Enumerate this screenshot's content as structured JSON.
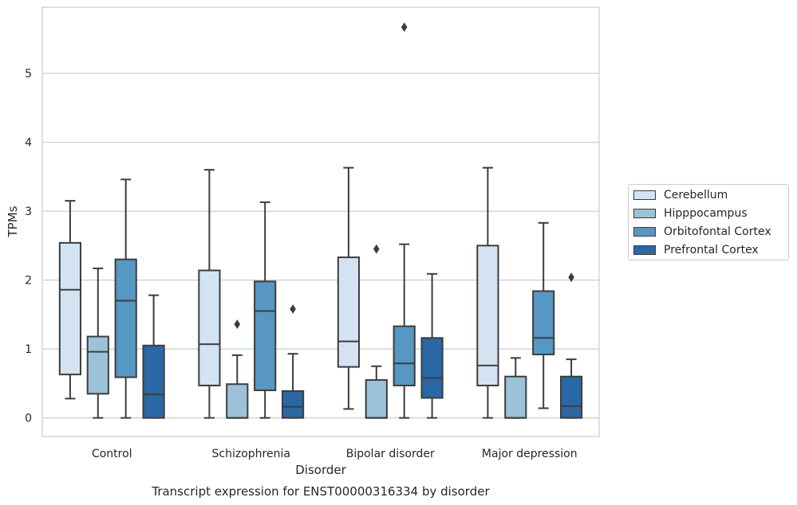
{
  "chart_data": {
    "type": "box",
    "title": "Transcript expression for ENST00000316334 by disorder",
    "xlabel": "Disorder",
    "ylabel": "TPMs",
    "ylim": [
      -0.27,
      5.96
    ],
    "yticks": [
      0,
      1,
      2,
      3,
      4,
      5
    ],
    "grid": "horizontal",
    "legend_position": "right",
    "categories": [
      "Control",
      "Schizophrenia",
      "Bipolar disorder",
      "Major depression"
    ],
    "series": [
      {
        "name": "Cerebellum",
        "color": "#d3e3f2",
        "boxes": [
          {
            "whislo": 0.28,
            "q1": 0.63,
            "med": 1.86,
            "q3": 2.54,
            "whishi": 3.15,
            "fliers": []
          },
          {
            "whislo": 0.0,
            "q1": 0.47,
            "med": 1.07,
            "q3": 2.14,
            "whishi": 3.6,
            "fliers": []
          },
          {
            "whislo": 0.13,
            "q1": 0.74,
            "med": 1.11,
            "q3": 2.33,
            "whishi": 3.63,
            "fliers": []
          },
          {
            "whislo": 0.0,
            "q1": 0.47,
            "med": 0.76,
            "q3": 2.5,
            "whishi": 3.63,
            "fliers": []
          }
        ]
      },
      {
        "name": "Hipppocampus",
        "color": "#9cc2da",
        "boxes": [
          {
            "whislo": 0.0,
            "q1": 0.35,
            "med": 0.96,
            "q3": 1.18,
            "whishi": 2.17,
            "fliers": []
          },
          {
            "whislo": 0.0,
            "q1": 0.0,
            "med": 0.0,
            "q3": 0.49,
            "whishi": 0.91,
            "fliers": [
              1.36
            ]
          },
          {
            "whislo": 0.0,
            "q1": 0.0,
            "med": 0.0,
            "q3": 0.55,
            "whishi": 0.75,
            "fliers": [
              2.45
            ]
          },
          {
            "whislo": 0.0,
            "q1": 0.0,
            "med": 0.0,
            "q3": 0.6,
            "whishi": 0.87,
            "fliers": []
          }
        ]
      },
      {
        "name": "Orbitofontal Cortex",
        "color": "#5797c3",
        "boxes": [
          {
            "whislo": 0.0,
            "q1": 0.59,
            "med": 1.7,
            "q3": 2.3,
            "whishi": 3.46,
            "fliers": []
          },
          {
            "whislo": 0.0,
            "q1": 0.4,
            "med": 1.55,
            "q3": 1.98,
            "whishi": 3.13,
            "fliers": []
          },
          {
            "whislo": 0.0,
            "q1": 0.47,
            "med": 0.79,
            "q3": 1.33,
            "whishi": 2.52,
            "fliers": [
              5.67
            ]
          },
          {
            "whislo": 0.14,
            "q1": 0.92,
            "med": 1.16,
            "q3": 1.84,
            "whishi": 2.83,
            "fliers": []
          }
        ]
      },
      {
        "name": "Prefrontal Cortex",
        "color": "#2967a5",
        "boxes": [
          {
            "whislo": 0.0,
            "q1": 0.0,
            "med": 0.34,
            "q3": 1.05,
            "whishi": 1.78,
            "fliers": []
          },
          {
            "whislo": 0.0,
            "q1": 0.0,
            "med": 0.16,
            "q3": 0.39,
            "whishi": 0.93,
            "fliers": [
              1.58
            ]
          },
          {
            "whislo": 0.0,
            "q1": 0.29,
            "med": 0.58,
            "q3": 1.16,
            "whishi": 2.09,
            "fliers": []
          },
          {
            "whislo": 0.0,
            "q1": 0.0,
            "med": 0.17,
            "q3": 0.6,
            "whishi": 0.85,
            "fliers": [
              2.04
            ]
          }
        ]
      }
    ]
  }
}
